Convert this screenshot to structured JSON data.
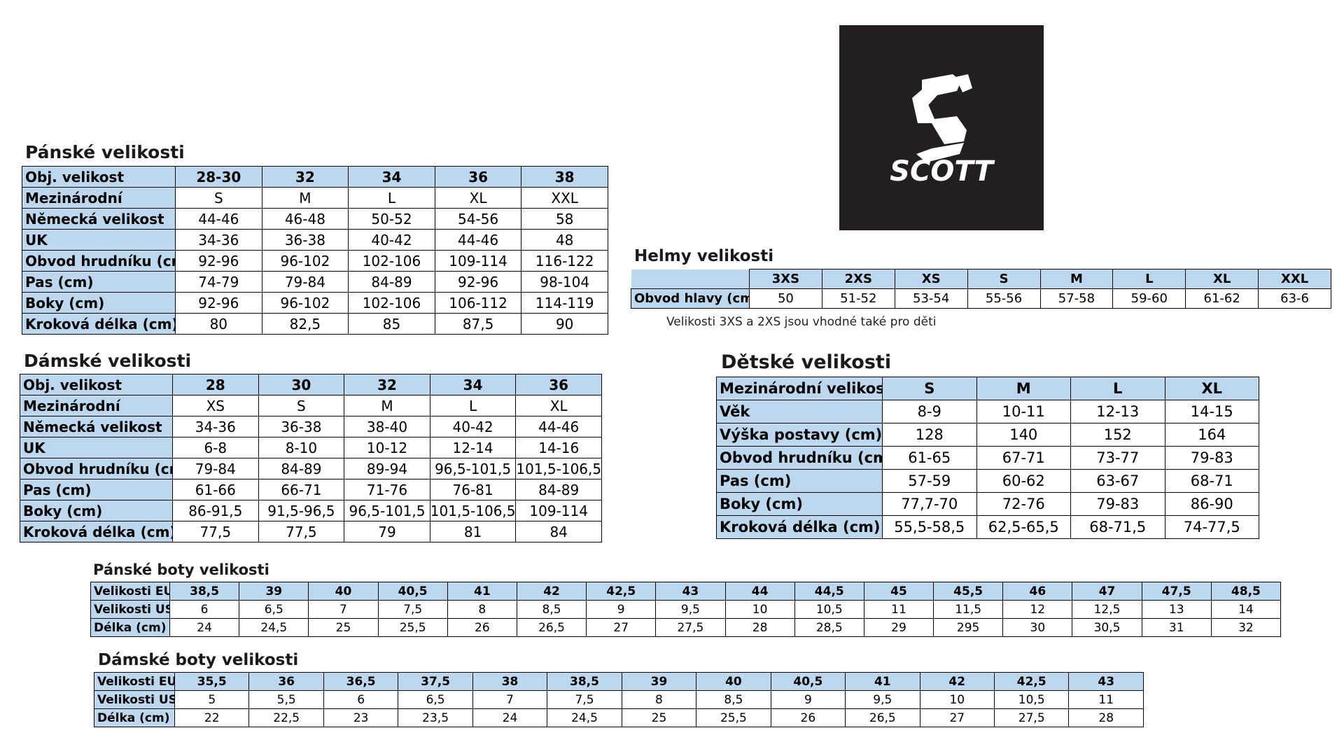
{
  "mens": {
    "title": "Pánské velikosti",
    "headers": [
      "Obj. velikost",
      "28-30",
      "32",
      "34",
      "36",
      "38"
    ],
    "rows": [
      [
        "Mezinárodní",
        "S",
        "M",
        "L",
        "XL",
        "XXL"
      ],
      [
        "Německá velikost",
        "44-46",
        "46-48",
        "50-52",
        "54-56",
        "58"
      ],
      [
        "UK",
        "34-36",
        "36-38",
        "40-42",
        "44-46",
        "48"
      ],
      [
        "Obvod hrudníku (cm)",
        "92-96",
        "96-102",
        "102-106",
        "109-114",
        "116-122"
      ],
      [
        "Pas (cm)",
        "74-79",
        "79-84",
        "84-89",
        "92-96",
        "98-104"
      ],
      [
        "Boky (cm)",
        "92-96",
        "96-102",
        "102-106",
        "106-112",
        "114-119"
      ],
      [
        "Kroková délka (cm)",
        "80",
        "82,5",
        "85",
        "87,5",
        "90"
      ]
    ]
  },
  "womens": {
    "title": "Dámské velikosti",
    "headers": [
      "Obj. velikost",
      "28",
      "30",
      "32",
      "34",
      "36"
    ],
    "rows": [
      [
        "Mezinárodní",
        "XS",
        "S",
        "M",
        "L",
        "XL"
      ],
      [
        "Německá velikost",
        "34-36",
        "36-38",
        "38-40",
        "40-42",
        "44-46"
      ],
      [
        "UK",
        "6-8",
        "8-10",
        "10-12",
        "12-14",
        "14-16"
      ],
      [
        "Obvod hrudníku (cm)",
        "79-84",
        "84-89",
        "89-94",
        "96,5-101,5",
        "101,5-106,5"
      ],
      [
        "Pas (cm)",
        "61-66",
        "66-71",
        "71-76",
        "76-81",
        "84-89"
      ],
      [
        "Boky (cm)",
        "86-91,5",
        "91,5-96,5",
        "96,5-101,5",
        "101,5-106,5",
        "109-114"
      ],
      [
        "Kroková délka (cm)",
        "77,5",
        "77,5",
        "79",
        "81",
        "84"
      ]
    ]
  },
  "helmets": {
    "title": "Helmy velikosti",
    "headers": [
      "3XS",
      "2XS",
      "XS",
      "S",
      "M",
      "L",
      "XL",
      "XXL"
    ],
    "row_label": "Obvod hlavy (cm)",
    "values": [
      "50",
      "51-52",
      "53-54",
      "55-56",
      "57-58",
      "59-60",
      "61-62",
      "63-6"
    ],
    "note": "Velikosti 3XS a 2XS jsou vhodné také pro děti"
  },
  "kids": {
    "title": "Dětské velikosti",
    "headers": [
      "Mezinárodní velikost",
      "S",
      "M",
      "L",
      "XL"
    ],
    "rows": [
      [
        "Věk",
        "8-9",
        "10-11",
        "12-13",
        "14-15"
      ],
      [
        "Výška postavy (cm)",
        "128",
        "140",
        "152",
        "164"
      ],
      [
        "Obvod hrudníku (cm)",
        "61-65",
        "67-71",
        "73-77",
        "79-83"
      ],
      [
        "Pas (cm)",
        "57-59",
        "60-62",
        "63-67",
        "68-71"
      ],
      [
        "Boky (cm)",
        "77,7-70",
        "72-76",
        "79-83",
        "86-90"
      ],
      [
        "Kroková délka (cm)",
        "55,5-58,5",
        "62,5-65,5",
        "68-71,5",
        "74-77,5"
      ]
    ]
  },
  "mens_shoes": {
    "title": "Pánské boty velikosti",
    "headers": [
      "Velikosti EU",
      "38,5",
      "39",
      "40",
      "40,5",
      "41",
      "42",
      "42,5",
      "43",
      "44",
      "44,5",
      "45",
      "45,5",
      "46",
      "47",
      "47,5",
      "48,5"
    ],
    "rows": [
      [
        "Velikosti US",
        "6",
        "6,5",
        "7",
        "7,5",
        "8",
        "8,5",
        "9",
        "9,5",
        "10",
        "10,5",
        "11",
        "11,5",
        "12",
        "12,5",
        "13",
        "14"
      ],
      [
        "Délka (cm)",
        "24",
        "24,5",
        "25",
        "25,5",
        "26",
        "26,5",
        "27",
        "27,5",
        "28",
        "28,5",
        "29",
        "295",
        "30",
        "30,5",
        "31",
        "32"
      ]
    ]
  },
  "womens_shoes": {
    "title": "Dámské boty velikosti",
    "headers": [
      "Velikosti EU",
      "35,5",
      "36",
      "36,5",
      "37,5",
      "38",
      "38,5",
      "39",
      "40",
      "40,5",
      "41",
      "42",
      "42,5",
      "43"
    ],
    "rows": [
      [
        "Velikosti US",
        "5",
        "5,5",
        "6",
        "6,5",
        "7",
        "7,5",
        "8",
        "8,5",
        "9",
        "9,5",
        "10",
        "10,5",
        "11"
      ],
      [
        "Délka (cm)",
        "22",
        "22,5",
        "23",
        "23,5",
        "24",
        "24,5",
        "25",
        "25,5",
        "26",
        "26,5",
        "27",
        "27,5",
        "28"
      ]
    ]
  },
  "logo": {
    "brand": "SCOTT",
    "icon": "scott-s-logo-icon",
    "background": "#231f20",
    "foreground": "#ffffff"
  },
  "colors": {
    "header_fill": "#bdd7ee",
    "border": "#000000"
  }
}
